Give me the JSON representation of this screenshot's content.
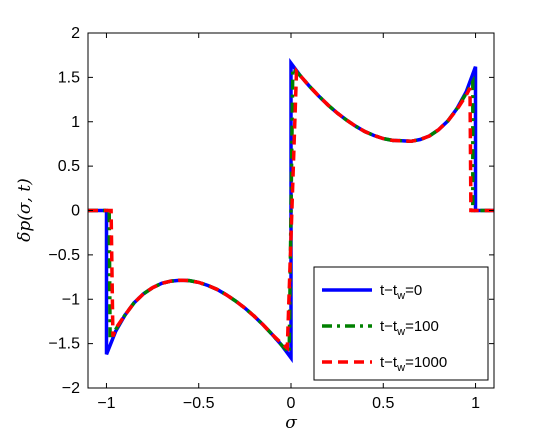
{
  "chart_data": {
    "type": "line",
    "title": "",
    "xlabel": "σ",
    "ylabel": "δp(σ, t)",
    "xlim": [
      -1.1,
      1.1
    ],
    "ylim": [
      -2,
      2
    ],
    "xticks": [
      -1,
      -0.5,
      0,
      0.5,
      1
    ],
    "xtick_labels": [
      "−1",
      "−0.5",
      "0",
      "0.5",
      "1"
    ],
    "yticks": [
      -2,
      -1.5,
      -1,
      -0.5,
      0,
      0.5,
      1,
      1.5,
      2
    ],
    "ytick_labels": [
      "−2",
      "−1.5",
      "−1",
      "−0.5",
      "0",
      "0.5",
      "1",
      "1.5",
      "2"
    ],
    "grid": false,
    "legend_position": "bottom-right",
    "series": [
      {
        "name": "t−t_w=0",
        "legend_main": "t−t",
        "legend_sub": "w",
        "legend_tail": "=0",
        "color": "#0000ff",
        "style": "solid",
        "points": [
          [
            -1.1,
            0
          ],
          [
            -1.0,
            0
          ],
          [
            -1.0,
            -1.62
          ],
          [
            -0.95,
            -1.36
          ],
          [
            -0.9,
            -1.18
          ],
          [
            -0.85,
            -1.04
          ],
          [
            -0.8,
            -0.94
          ],
          [
            -0.75,
            -0.87
          ],
          [
            -0.7,
            -0.82
          ],
          [
            -0.65,
            -0.795
          ],
          [
            -0.6,
            -0.785
          ],
          [
            -0.55,
            -0.79
          ],
          [
            -0.5,
            -0.81
          ],
          [
            -0.45,
            -0.845
          ],
          [
            -0.4,
            -0.89
          ],
          [
            -0.35,
            -0.95
          ],
          [
            -0.3,
            -1.02
          ],
          [
            -0.25,
            -1.1
          ],
          [
            -0.2,
            -1.19
          ],
          [
            -0.15,
            -1.29
          ],
          [
            -0.1,
            -1.4
          ],
          [
            -0.05,
            -1.52
          ],
          [
            0.0,
            -1.66
          ],
          [
            0.0,
            1.66
          ],
          [
            0.05,
            1.52
          ],
          [
            0.1,
            1.4
          ],
          [
            0.15,
            1.29
          ],
          [
            0.2,
            1.19
          ],
          [
            0.25,
            1.1
          ],
          [
            0.3,
            1.02
          ],
          [
            0.35,
            0.95
          ],
          [
            0.4,
            0.89
          ],
          [
            0.45,
            0.845
          ],
          [
            0.5,
            0.81
          ],
          [
            0.55,
            0.79
          ],
          [
            0.6,
            0.785
          ],
          [
            0.65,
            0.78
          ],
          [
            0.7,
            0.8
          ],
          [
            0.75,
            0.84
          ],
          [
            0.8,
            0.91
          ],
          [
            0.85,
            1.01
          ],
          [
            0.9,
            1.15
          ],
          [
            0.95,
            1.34
          ],
          [
            1.0,
            1.62
          ],
          [
            1.0,
            0
          ],
          [
            1.1,
            0
          ]
        ]
      },
      {
        "name": "t−t_w=100",
        "legend_main": "t−t",
        "legend_sub": "w",
        "legend_tail": "=100",
        "color": "#008000",
        "style": "dashdot",
        "points": [
          [
            -1.1,
            0
          ],
          [
            -0.985,
            0
          ],
          [
            -0.98,
            -1.45
          ],
          [
            -0.95,
            -1.34
          ],
          [
            -0.9,
            -1.18
          ],
          [
            -0.85,
            -1.04
          ],
          [
            -0.8,
            -0.94
          ],
          [
            -0.75,
            -0.87
          ],
          [
            -0.7,
            -0.82
          ],
          [
            -0.65,
            -0.795
          ],
          [
            -0.6,
            -0.785
          ],
          [
            -0.55,
            -0.79
          ],
          [
            -0.5,
            -0.81
          ],
          [
            -0.45,
            -0.845
          ],
          [
            -0.4,
            -0.89
          ],
          [
            -0.35,
            -0.95
          ],
          [
            -0.3,
            -1.02
          ],
          [
            -0.25,
            -1.1
          ],
          [
            -0.2,
            -1.19
          ],
          [
            -0.15,
            -1.29
          ],
          [
            -0.1,
            -1.4
          ],
          [
            -0.05,
            -1.52
          ],
          [
            -0.01,
            -1.6
          ],
          [
            0.01,
            1.6
          ],
          [
            0.05,
            1.52
          ],
          [
            0.1,
            1.4
          ],
          [
            0.15,
            1.29
          ],
          [
            0.2,
            1.19
          ],
          [
            0.25,
            1.1
          ],
          [
            0.3,
            1.02
          ],
          [
            0.35,
            0.95
          ],
          [
            0.4,
            0.89
          ],
          [
            0.45,
            0.845
          ],
          [
            0.5,
            0.81
          ],
          [
            0.55,
            0.79
          ],
          [
            0.6,
            0.785
          ],
          [
            0.65,
            0.78
          ],
          [
            0.7,
            0.8
          ],
          [
            0.75,
            0.84
          ],
          [
            0.8,
            0.91
          ],
          [
            0.85,
            1.01
          ],
          [
            0.9,
            1.15
          ],
          [
            0.95,
            1.32
          ],
          [
            0.985,
            1.45
          ],
          [
            0.985,
            0
          ],
          [
            1.1,
            0
          ]
        ]
      },
      {
        "name": "t−t_w=1000",
        "legend_main": "t−t",
        "legend_sub": "w",
        "legend_tail": "=1000",
        "color": "#ff0000",
        "style": "dashed",
        "points": [
          [
            -1.1,
            0
          ],
          [
            -0.975,
            0
          ],
          [
            -0.965,
            -1.42
          ],
          [
            -0.95,
            -1.33
          ],
          [
            -0.9,
            -1.18
          ],
          [
            -0.85,
            -1.04
          ],
          [
            -0.8,
            -0.94
          ],
          [
            -0.75,
            -0.87
          ],
          [
            -0.7,
            -0.82
          ],
          [
            -0.65,
            -0.795
          ],
          [
            -0.6,
            -0.785
          ],
          [
            -0.55,
            -0.79
          ],
          [
            -0.5,
            -0.81
          ],
          [
            -0.45,
            -0.845
          ],
          [
            -0.4,
            -0.89
          ],
          [
            -0.35,
            -0.95
          ],
          [
            -0.3,
            -1.02
          ],
          [
            -0.25,
            -1.1
          ],
          [
            -0.2,
            -1.19
          ],
          [
            -0.15,
            -1.29
          ],
          [
            -0.1,
            -1.4
          ],
          [
            -0.05,
            -1.5
          ],
          [
            -0.02,
            -1.55
          ],
          [
            0.03,
            1.57
          ],
          [
            0.05,
            1.52
          ],
          [
            0.1,
            1.4
          ],
          [
            0.15,
            1.29
          ],
          [
            0.2,
            1.19
          ],
          [
            0.25,
            1.1
          ],
          [
            0.3,
            1.02
          ],
          [
            0.35,
            0.95
          ],
          [
            0.4,
            0.89
          ],
          [
            0.45,
            0.845
          ],
          [
            0.5,
            0.81
          ],
          [
            0.55,
            0.79
          ],
          [
            0.6,
            0.785
          ],
          [
            0.65,
            0.78
          ],
          [
            0.7,
            0.8
          ],
          [
            0.75,
            0.84
          ],
          [
            0.8,
            0.91
          ],
          [
            0.85,
            1.01
          ],
          [
            0.9,
            1.14
          ],
          [
            0.95,
            1.3
          ],
          [
            0.97,
            1.38
          ],
          [
            0.975,
            0
          ],
          [
            1.1,
            0
          ]
        ]
      }
    ]
  }
}
